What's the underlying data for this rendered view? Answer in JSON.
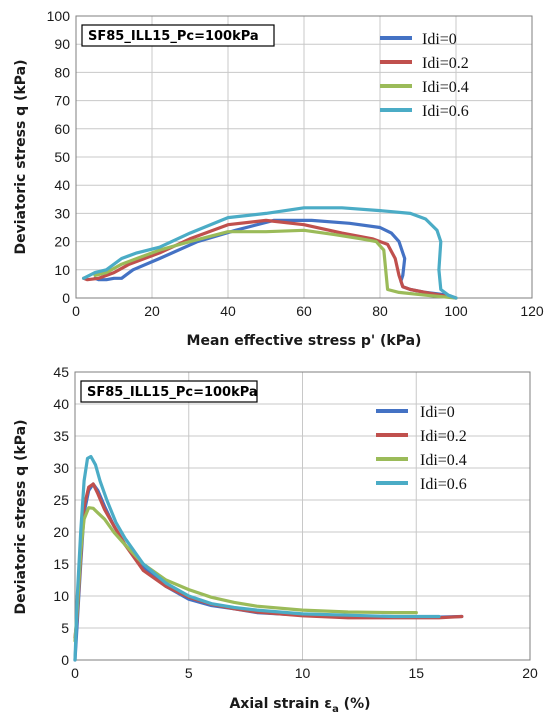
{
  "chart_data": [
    {
      "type": "line",
      "annotation": "SF85_ILL15_Pc=100kPa",
      "xlabel": "Mean effective stress p' (kPa)",
      "ylabel": "Deviatoric stress q (kPa)",
      "xlim": [
        0,
        120
      ],
      "ylim": [
        0,
        100
      ],
      "xticks": [
        0,
        20,
        40,
        60,
        80,
        100,
        120
      ],
      "yticks": [
        0,
        10,
        20,
        30,
        40,
        50,
        60,
        70,
        80,
        90,
        100
      ],
      "grid": true,
      "legend_position": "top-right",
      "series": [
        {
          "name": "Idi=0",
          "color": "#4472c4",
          "x": [
            100,
            98,
            92,
            88,
            86,
            85.5,
            86,
            86.5,
            85,
            83,
            80,
            72,
            62,
            52,
            42,
            32,
            22,
            15,
            12,
            10,
            8,
            6,
            5
          ],
          "y": [
            0,
            1,
            2,
            3,
            4,
            6,
            8,
            14,
            20,
            23,
            25,
            26.5,
            27.5,
            27.5,
            24,
            20,
            14,
            10,
            7,
            7,
            6.5,
            6.5,
            7
          ]
        },
        {
          "name": "Idi=0.2",
          "color": "#c0504d",
          "x": [
            100,
            96,
            92,
            88,
            86,
            85,
            84,
            82,
            78,
            70,
            60,
            50,
            40,
            30,
            22,
            14,
            10,
            6,
            3,
            2
          ],
          "y": [
            0,
            1,
            2,
            3,
            4,
            8,
            14,
            19,
            21,
            23,
            26,
            27.5,
            26,
            21,
            16,
            12,
            9,
            7,
            6.5,
            7
          ]
        },
        {
          "name": "Idi=0.4",
          "color": "#9bbb59",
          "x": [
            100,
            92,
            85,
            82,
            81.5,
            81,
            79,
            75,
            68,
            60,
            50,
            40,
            30,
            22,
            16,
            12,
            8,
            5
          ],
          "y": [
            0,
            1,
            2,
            3,
            10,
            17,
            20,
            21,
            22.5,
            24,
            23.5,
            23.5,
            20,
            17,
            14,
            12,
            9,
            8
          ]
        },
        {
          "name": "Idi=0.6",
          "color": "#4bacc6",
          "x": [
            100,
            98,
            96,
            95.5,
            96,
            95,
            92,
            88,
            80,
            70,
            60,
            50,
            40,
            30,
            22,
            16,
            12,
            8,
            5,
            2
          ],
          "y": [
            0,
            1,
            3,
            10,
            20,
            24,
            28,
            30,
            31,
            32,
            32,
            30,
            28.5,
            23,
            18,
            16,
            14,
            10,
            9,
            7
          ]
        }
      ]
    },
    {
      "type": "line",
      "annotation": "SF85_ILL15_Pc=100kPa",
      "xlabel_main": "Axial strain ε",
      "xlabel_sub": "a",
      "xlabel_unit": " (%)",
      "ylabel": "Deviatoric stress q (kPa)",
      "xlim": [
        0,
        20
      ],
      "ylim": [
        0,
        45
      ],
      "xticks": [
        0,
        5,
        10,
        15,
        20
      ],
      "yticks": [
        0,
        5,
        10,
        15,
        20,
        25,
        30,
        35,
        40,
        45
      ],
      "grid": true,
      "legend_position": "top-right",
      "series": [
        {
          "name": "Idi=0",
          "color": "#4472c4",
          "x": [
            0,
            0.1,
            0.25,
            0.4,
            0.6,
            0.8,
            1.0,
            1.3,
            1.7,
            2.2,
            3,
            4,
            5,
            6,
            7,
            8,
            10,
            12,
            14,
            16,
            17
          ],
          "y": [
            0,
            6,
            15,
            23,
            26.5,
            27.5,
            26.5,
            24,
            21,
            18,
            14.5,
            11.5,
            9.5,
            8.5,
            8,
            7.4,
            7,
            6.8,
            6.7,
            6.7,
            6.8
          ]
        },
        {
          "name": "Idi=0.2",
          "color": "#c0504d",
          "x": [
            0,
            0.1,
            0.25,
            0.4,
            0.6,
            0.8,
            1.0,
            1.3,
            1.7,
            2.2,
            3,
            4,
            5,
            6,
            7,
            8,
            10,
            12,
            14,
            16,
            17
          ],
          "y": [
            3.5,
            7,
            16,
            24,
            27,
            27.5,
            26,
            23.5,
            21,
            18,
            14,
            11.5,
            9.8,
            8.7,
            8,
            7.5,
            6.9,
            6.6,
            6.6,
            6.6,
            6.8
          ]
        },
        {
          "name": "Idi=0.4",
          "color": "#9bbb59",
          "x": [
            0,
            0.1,
            0.25,
            0.4,
            0.6,
            0.8,
            1.0,
            1.3,
            1.7,
            2.2,
            3,
            4,
            5,
            6,
            7,
            8,
            10,
            12,
            14,
            15
          ],
          "y": [
            3,
            8,
            17,
            22,
            23.8,
            23.7,
            23,
            22,
            20,
            18,
            15,
            12.5,
            11,
            9.8,
            9,
            8.4,
            7.8,
            7.5,
            7.4,
            7.4
          ]
        },
        {
          "name": "Idi=0.6",
          "color": "#4bacc6",
          "x": [
            0,
            0.1,
            0.25,
            0.4,
            0.55,
            0.7,
            0.9,
            1.1,
            1.4,
            1.8,
            2.2,
            3,
            4,
            5,
            6,
            7,
            8,
            10,
            12,
            14,
            16
          ],
          "y": [
            0,
            10,
            20,
            28,
            31.5,
            31.8,
            30.5,
            28,
            25,
            21.5,
            19,
            15,
            12,
            10,
            8.8,
            8.2,
            7.8,
            7.2,
            7,
            6.8,
            6.8
          ]
        }
      ]
    }
  ]
}
